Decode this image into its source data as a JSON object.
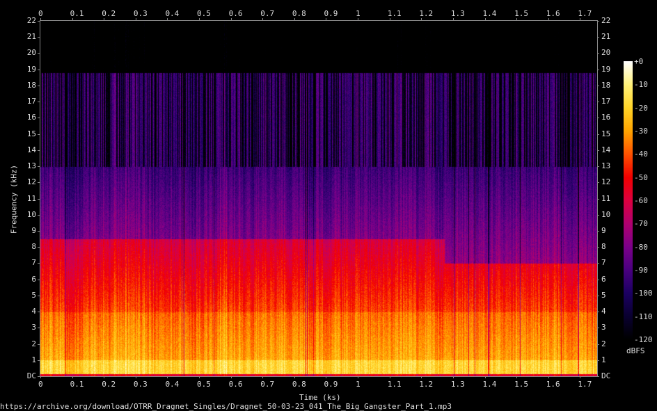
{
  "chart_data": {
    "type": "heatmap",
    "subtype": "spectrogram",
    "xlabel": "Time (ks)",
    "ylabel": "Frequency (kHz)",
    "xlim": [
      0,
      1.754
    ],
    "ylim": [
      0,
      22
    ],
    "x_ticks": [
      "0",
      "0.1",
      "0.2",
      "0.3",
      "0.4",
      "0.5",
      "0.6",
      "0.7",
      "0.8",
      "0.9",
      "1",
      "1.1",
      "1.2",
      "1.3",
      "1.4",
      "1.5",
      "1.6",
      "1.7"
    ],
    "y_ticks": [
      "DC",
      "1",
      "2",
      "3",
      "4",
      "5",
      "6",
      "7",
      "8",
      "9",
      "10",
      "11",
      "12",
      "13",
      "14",
      "15",
      "16",
      "17",
      "18",
      "19",
      "20",
      "21",
      "22"
    ],
    "colorbar": {
      "label": "dBFS",
      "range": [
        -120,
        0
      ],
      "ticks": [
        "+0",
        "-10",
        "-20",
        "-30",
        "-40",
        "-50",
        "-60",
        "-70",
        "-80",
        "-90",
        "-100",
        "-110",
        "-120"
      ],
      "colormap": [
        {
          "db": -120,
          "color": "#000000"
        },
        {
          "db": -110,
          "color": "#0a0030"
        },
        {
          "db": -100,
          "color": "#1c0062"
        },
        {
          "db": -90,
          "color": "#4a0080"
        },
        {
          "db": -80,
          "color": "#7c008a"
        },
        {
          "db": -70,
          "color": "#b00070"
        },
        {
          "db": -60,
          "color": "#dc0040"
        },
        {
          "db": -50,
          "color": "#f20000"
        },
        {
          "db": -40,
          "color": "#ff5200"
        },
        {
          "db": -30,
          "color": "#ffa400"
        },
        {
          "db": -20,
          "color": "#ffd428"
        },
        {
          "db": -10,
          "color": "#fff27a"
        },
        {
          "db": 0,
          "color": "#ffffff"
        }
      ]
    },
    "content_bands_khz": {
      "lowpass_cutoff": 18.8,
      "secondary_cutoff": 13
    }
  },
  "footer": {
    "source": "https://archive.org/download/OTRR_Dragnet_Singles/Dragnet_50-03-23_041_The_Big_Gangster_Part_1.mp3"
  }
}
